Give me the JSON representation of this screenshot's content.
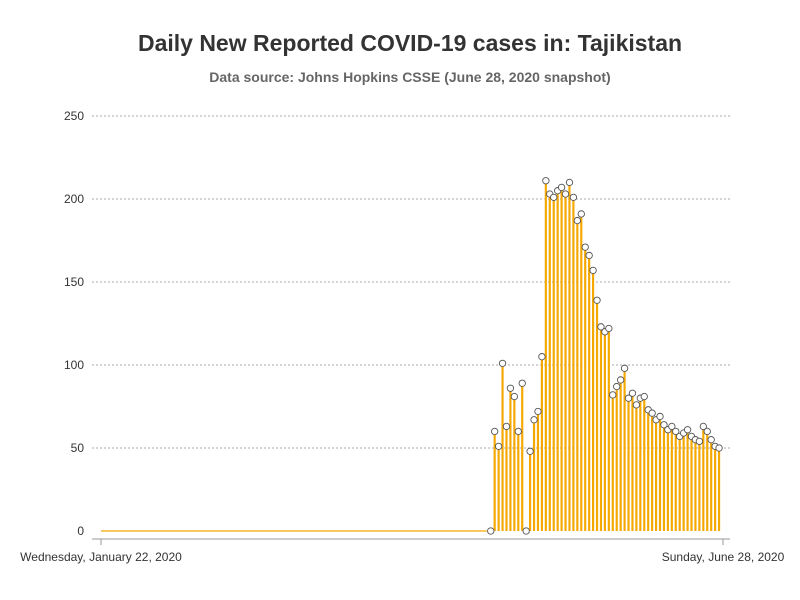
{
  "title": "Daily New Reported COVID-19 cases in: Tajikistan",
  "subtitle": "Data source: Johns Hopkins CSSE (June 28, 2020 snapshot)",
  "colors": {
    "bar": "#f5a800",
    "marker_fill": "#ffffff",
    "marker_stroke": "#555555",
    "grid": "#aaaaaa",
    "axis": "#999999",
    "text": "#333333"
  },
  "chart_data": {
    "type": "bar",
    "title": "Daily New Reported COVID-19 cases in: Tajikistan",
    "subtitle": "Data source: Johns Hopkins CSSE (June 28, 2020 snapshot)",
    "xlabel": "",
    "ylabel": "",
    "ylim": [
      0,
      250
    ],
    "yticks": [
      0,
      50,
      100,
      150,
      200,
      250
    ],
    "x_start": "2020-01-22",
    "x_end": "2020-06-28",
    "x_tick_labels": [
      "Wednesday, January 22, 2020",
      "Sunday, June 28, 2020"
    ],
    "grid": true,
    "legend": "none",
    "series": [
      {
        "x": [
          "2020-01-22",
          "2020-04-29"
        ],
        "values": [
          0,
          0
        ]
      },
      {
        "x_start": "2020-04-30",
        "values": [
          0,
          60,
          51,
          101,
          63,
          86,
          81,
          60,
          89,
          0,
          48,
          67,
          72,
          105,
          211,
          203,
          201,
          205,
          207,
          203,
          210,
          201,
          187,
          191,
          171,
          166,
          157,
          139,
          123,
          120,
          122,
          82,
          87,
          91,
          98,
          80,
          83,
          76,
          80,
          81,
          73,
          71,
          67,
          69,
          64,
          61,
          63,
          60,
          57,
          59,
          61,
          57,
          55,
          54,
          63,
          60,
          55,
          51,
          50
        ]
      }
    ]
  }
}
